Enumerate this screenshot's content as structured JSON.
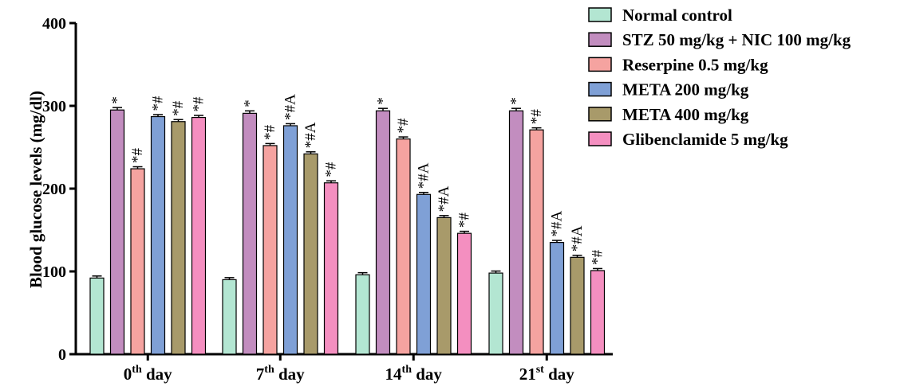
{
  "chart_data": {
    "type": "bar",
    "title": "",
    "xlabel": "",
    "ylabel": "Blood glucose levels (mg/dl)",
    "ylim": [
      0,
      400
    ],
    "yticks": [
      0,
      100,
      200,
      300,
      400
    ],
    "grid": false,
    "legend_position": "top-right",
    "categories": [
      {
        "base": "0",
        "sup": "th",
        "rest": " day"
      },
      {
        "base": "7",
        "sup": "th",
        "rest": " day"
      },
      {
        "base": "14",
        "sup": "th",
        "rest": " day"
      },
      {
        "base": "21",
        "sup": "st",
        "rest": " day"
      }
    ],
    "series": [
      {
        "name": "Normal control",
        "color": "#b3e6d2",
        "values": [
          92,
          90,
          96,
          98
        ],
        "errors": [
          1,
          1,
          1,
          1
        ],
        "labels": [
          "",
          "",
          "",
          ""
        ]
      },
      {
        "name": "STZ 50 mg/kg + NIC 100 mg/kg",
        "color": "#c28dbf",
        "values": [
          295,
          291,
          294,
          294
        ],
        "errors": [
          1.5,
          1.5,
          1.5,
          1.5
        ],
        "labels": [
          "*",
          "*",
          "*",
          "*"
        ]
      },
      {
        "name": "Reserpine 0.5 mg/kg",
        "color": "#f5a3a0",
        "values": [
          224,
          252,
          260,
          271
        ],
        "errors": [
          1,
          1,
          1,
          1
        ],
        "labels": [
          "*#",
          "*#",
          "*#",
          "*#"
        ]
      },
      {
        "name": "META 200 mg/kg",
        "color": "#7fa0d6",
        "values": [
          287,
          276,
          193,
          135
        ],
        "errors": [
          1,
          1,
          1,
          1
        ],
        "labels": [
          "*#",
          "*#A",
          "*#A",
          "*#A"
        ]
      },
      {
        "name": "META 400 mg/kg",
        "color": "#a89a6a",
        "values": [
          281,
          242,
          165,
          117
        ],
        "errors": [
          1,
          1,
          1,
          1
        ],
        "labels": [
          "*#",
          "*#A",
          "*#A",
          "*#A"
        ]
      },
      {
        "name": "Glibenclamide 5 mg/kg",
        "color": "#f48fc0",
        "values": [
          286,
          207,
          146,
          101
        ],
        "errors": [
          1,
          1,
          1,
          1
        ],
        "labels": [
          "*#",
          "*#",
          "*#",
          "*#"
        ]
      }
    ]
  }
}
